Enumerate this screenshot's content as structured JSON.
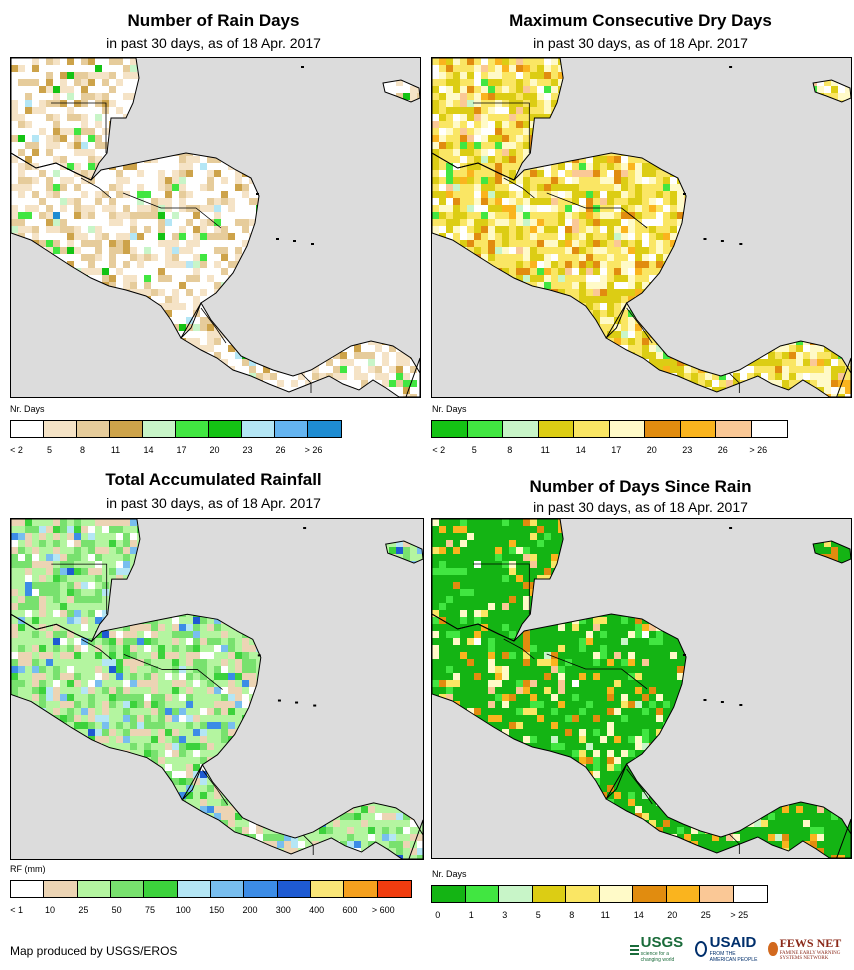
{
  "panels": [
    {
      "id": "rain-days",
      "title": "Number of Rain Days",
      "subtitle": "in past 30 days, as of 18 Apr. 2017",
      "legend_title": "Nr. Days",
      "legend_labels": [
        "< 2",
        "5",
        "8",
        "11",
        "14",
        "17",
        "20",
        "23",
        "26",
        "> 26"
      ],
      "legend_colors": [
        "#ffffff",
        "#f5e3c6",
        "#e6cc9b",
        "#cda34a",
        "#c8f5c8",
        "#41e641",
        "#14c314",
        "#b4e6f5",
        "#64b4f0",
        "#1e8cd2"
      ],
      "base_color": "#ffffff",
      "palette": [
        "#ffffff",
        "#f5e3c6",
        "#e6cc9b",
        "#cda34a",
        "#c8f5c8",
        "#41e641",
        "#14c314",
        "#b4e6f5",
        "#1e8cd2"
      ],
      "weights": [
        48,
        22,
        18,
        6,
        2,
        2,
        1,
        1,
        0.5
      ]
    },
    {
      "id": "max-dry-days",
      "title": "Maximum Consecutive Dry Days",
      "subtitle": "in past 30 days, as of 18 Apr. 2017",
      "legend_title": "Nr. Days",
      "legend_labels": [
        "< 2",
        "5",
        "8",
        "11",
        "14",
        "17",
        "20",
        "23",
        "26",
        "> 26"
      ],
      "legend_colors": [
        "#14c314",
        "#41e641",
        "#c8f5c8",
        "#dccd14",
        "#fae664",
        "#fffac8",
        "#e18c0f",
        "#fab41e",
        "#fac896",
        "#ffffff"
      ],
      "base_color": "#fae664",
      "palette": [
        "#fae664",
        "#dccd14",
        "#fffac8",
        "#ffffff",
        "#e18c0f",
        "#fab41e",
        "#fac896",
        "#41e641",
        "#c8f5c8"
      ],
      "weights": [
        32,
        24,
        18,
        10,
        6,
        4,
        3,
        2,
        1
      ]
    },
    {
      "id": "total-rainfall",
      "title": "Total Accumulated Rainfall",
      "subtitle": "in past 30 days, as of 18 Apr. 2017",
      "legend_title": "RF (mm)",
      "legend_labels": [
        "< 1",
        "10",
        "25",
        "50",
        "75",
        "100",
        "150",
        "200",
        "300",
        "400",
        "600",
        "> 600"
      ],
      "legend_colors": [
        "#ffffff",
        "#ecd4b4",
        "#b4f5a0",
        "#78e16e",
        "#3cd23c",
        "#b4e6f5",
        "#78beef",
        "#3c8ce6",
        "#1e5ad2",
        "#fae678",
        "#f5a01e",
        "#f03c0f"
      ],
      "base_color": "#b4f5a0",
      "palette": [
        "#b4f5a0",
        "#78e16e",
        "#ecd4b4",
        "#ffffff",
        "#3cd23c",
        "#b4e6f5",
        "#78beef",
        "#3c8ce6",
        "#1e5ad2"
      ],
      "weights": [
        40,
        20,
        18,
        6,
        6,
        4,
        3,
        2,
        1
      ]
    },
    {
      "id": "days-since-rain",
      "title": "Number of Days Since Rain",
      "subtitle": "in past 30 days, as of 18 Apr. 2017",
      "legend_title": "Nr. Days",
      "legend_labels": [
        "0",
        "1",
        "3",
        "5",
        "8",
        "11",
        "14",
        "20",
        "25",
        "> 25"
      ],
      "legend_colors": [
        "#14b414",
        "#41e641",
        "#c8f5c8",
        "#dccd14",
        "#fae664",
        "#fffac8",
        "#e18c0f",
        "#fab41e",
        "#fac896",
        "#ffffff"
      ],
      "base_color": "#14b414",
      "palette": [
        "#14b414",
        "#41e641",
        "#fab41e",
        "#e18c0f",
        "#fffac8",
        "#fae664",
        "#fac896",
        "#c8f5c8",
        "#ffffff"
      ],
      "weights": [
        70,
        8,
        6,
        5,
        4,
        3,
        2,
        1,
        1
      ]
    }
  ],
  "ocean_color": "#dcdcdc",
  "credit": "Map produced by USGS/EROS",
  "logos": {
    "usgs": "USGS",
    "usgs_tagline": "science for a changing world",
    "usaid": "USAID",
    "usaid_tagline": "FROM THE AMERICAN PEOPLE",
    "fewsnet": "FEWS NET",
    "fewsnet_tagline": "FAMINE EARLY WARNING SYSTEMS NETWORK"
  }
}
